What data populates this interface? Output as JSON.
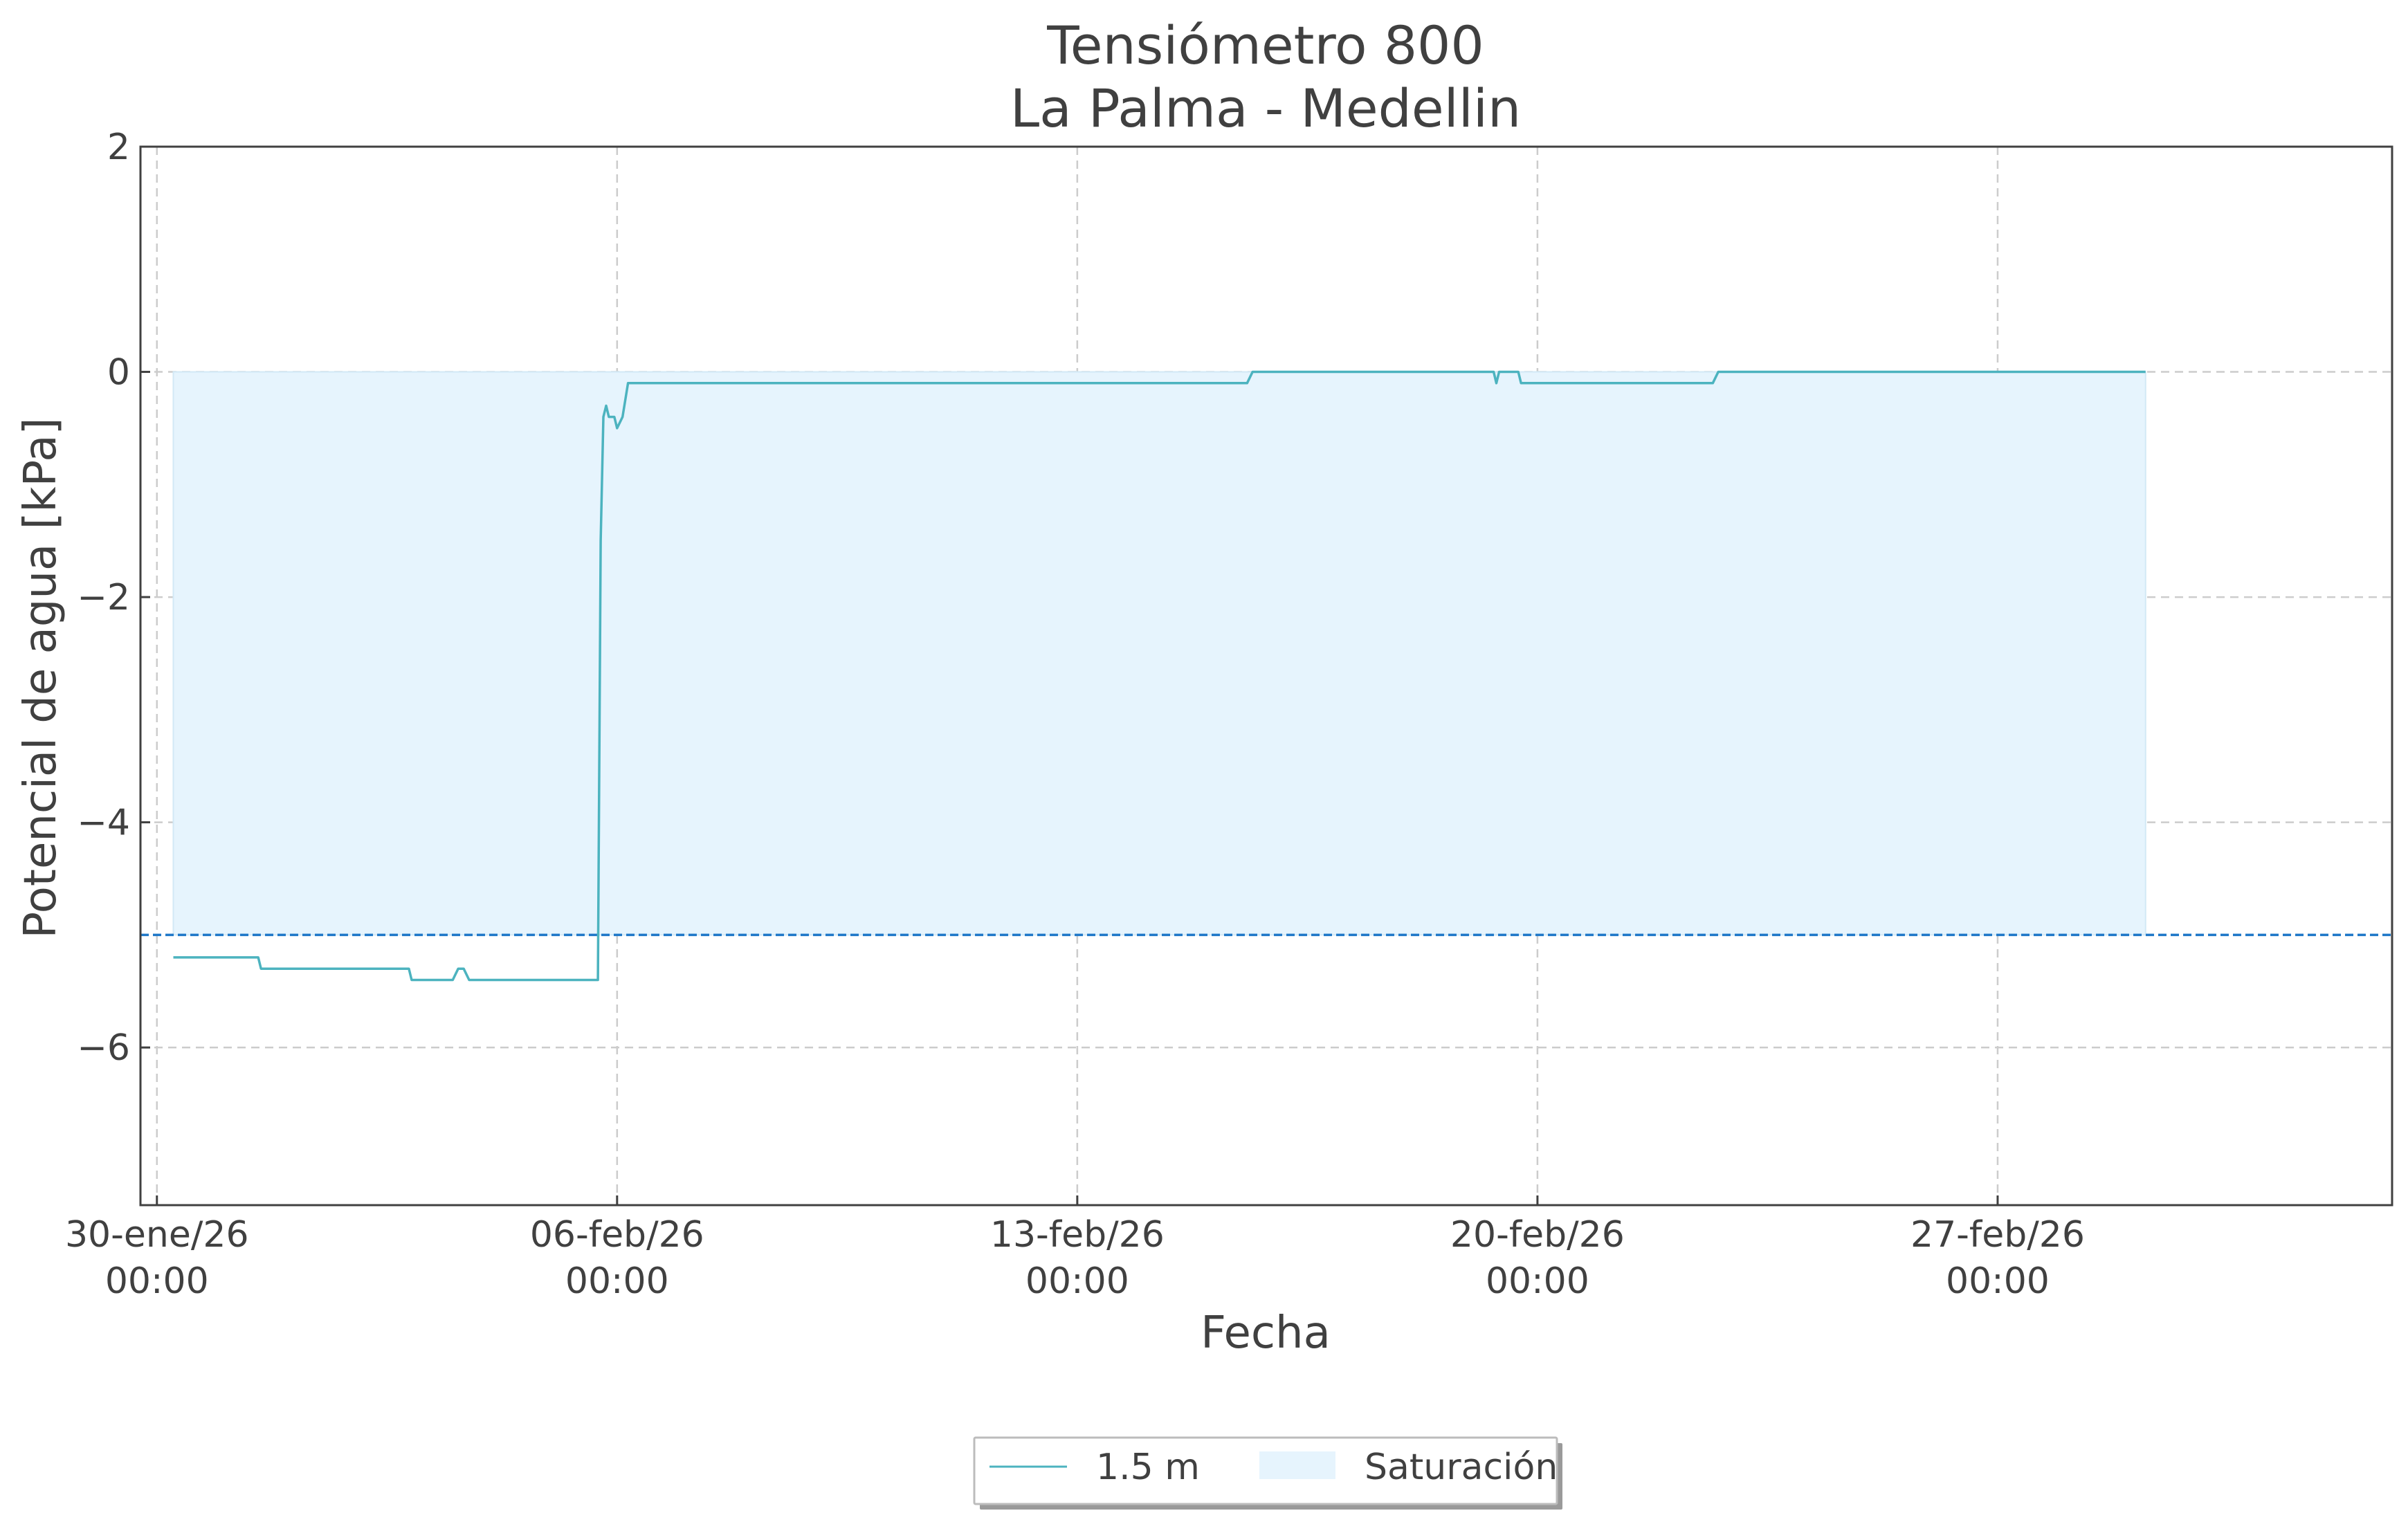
{
  "chart_data": {
    "type": "line",
    "title": "Tensiómetro 800",
    "subtitle": "La Palma - Medellin",
    "xlabel": "Fecha",
    "ylabel": "Potencial de agua [kPa]",
    "x_axis": {
      "type": "date",
      "range": [
        "2026-01-29T18:00",
        "2026-03-05T00:00"
      ],
      "ticks": [
        {
          "value": "2026-01-30T00:00",
          "label": [
            "30-ene/26",
            "00:00"
          ]
        },
        {
          "value": "2026-02-06T00:00",
          "label": [
            "06-feb/26",
            "00:00"
          ]
        },
        {
          "value": "2026-02-13T00:00",
          "label": [
            "13-feb/26",
            "00:00"
          ]
        },
        {
          "value": "2026-02-20T00:00",
          "label": [
            "20-feb/26",
            "00:00"
          ]
        },
        {
          "value": "2026-02-27T00:00",
          "label": [
            "27-feb/26",
            "00:00"
          ]
        }
      ]
    },
    "y_axis": {
      "range": [
        -7.4,
        2.0
      ],
      "ticks": [
        {
          "value": 2,
          "label": "2"
        },
        {
          "value": 0,
          "label": "0"
        },
        {
          "value": -2,
          "label": "−2"
        },
        {
          "value": -4,
          "label": "−4"
        },
        {
          "value": -6,
          "label": "−6"
        }
      ]
    },
    "grid": true,
    "legend_position": "bottom-center",
    "series": [
      {
        "name": "1.5 m",
        "color": "#4cb3bf",
        "points": [
          [
            "2026-01-30T06:00",
            -5.2
          ],
          [
            "2026-01-31T13:00",
            -5.2
          ],
          [
            "2026-01-31T14:00",
            -5.3
          ],
          [
            "2026-02-02T20:00",
            -5.3
          ],
          [
            "2026-02-02T21:00",
            -5.4
          ],
          [
            "2026-02-03T12:00",
            -5.4
          ],
          [
            "2026-02-03T14:00",
            -5.3
          ],
          [
            "2026-02-03T16:00",
            -5.3
          ],
          [
            "2026-02-03T18:00",
            -5.4
          ],
          [
            "2026-02-05T17:00",
            -5.4
          ],
          [
            "2026-02-05T18:00",
            -1.5
          ],
          [
            "2026-02-05T19:00",
            -0.4
          ],
          [
            "2026-02-05T20:00",
            -0.3
          ],
          [
            "2026-02-05T21:00",
            -0.4
          ],
          [
            "2026-02-05T23:00",
            -0.4
          ],
          [
            "2026-02-06T00:00",
            -0.5
          ],
          [
            "2026-02-06T02:00",
            -0.4
          ],
          [
            "2026-02-06T04:00",
            -0.1
          ],
          [
            "2026-02-15T14:00",
            -0.1
          ],
          [
            "2026-02-15T16:00",
            0.0
          ],
          [
            "2026-02-19T08:00",
            0.0
          ],
          [
            "2026-02-19T09:00",
            -0.1
          ],
          [
            "2026-02-19T10:00",
            0.0
          ],
          [
            "2026-02-19T17:00",
            0.0
          ],
          [
            "2026-02-19T18:00",
            -0.1
          ],
          [
            "2026-02-22T16:00",
            -0.1
          ],
          [
            "2026-02-22T18:00",
            0.0
          ],
          [
            "2026-03-01T06:00",
            0.0
          ]
        ]
      }
    ],
    "bands": [
      {
        "name": "Saturación",
        "x_range": [
          "2026-01-30T06:00",
          "2026-03-01T06:00"
        ],
        "y_range": [
          -5.0,
          0.0
        ],
        "color": "#e6f4fd"
      }
    ],
    "reference_lines": [
      {
        "y": -5.0,
        "color": "#1f78c8",
        "style": "dashed"
      }
    ],
    "colors": {
      "grid": "#cccccc",
      "axis": "#404040",
      "band_edge": "#d2e9f6"
    }
  }
}
